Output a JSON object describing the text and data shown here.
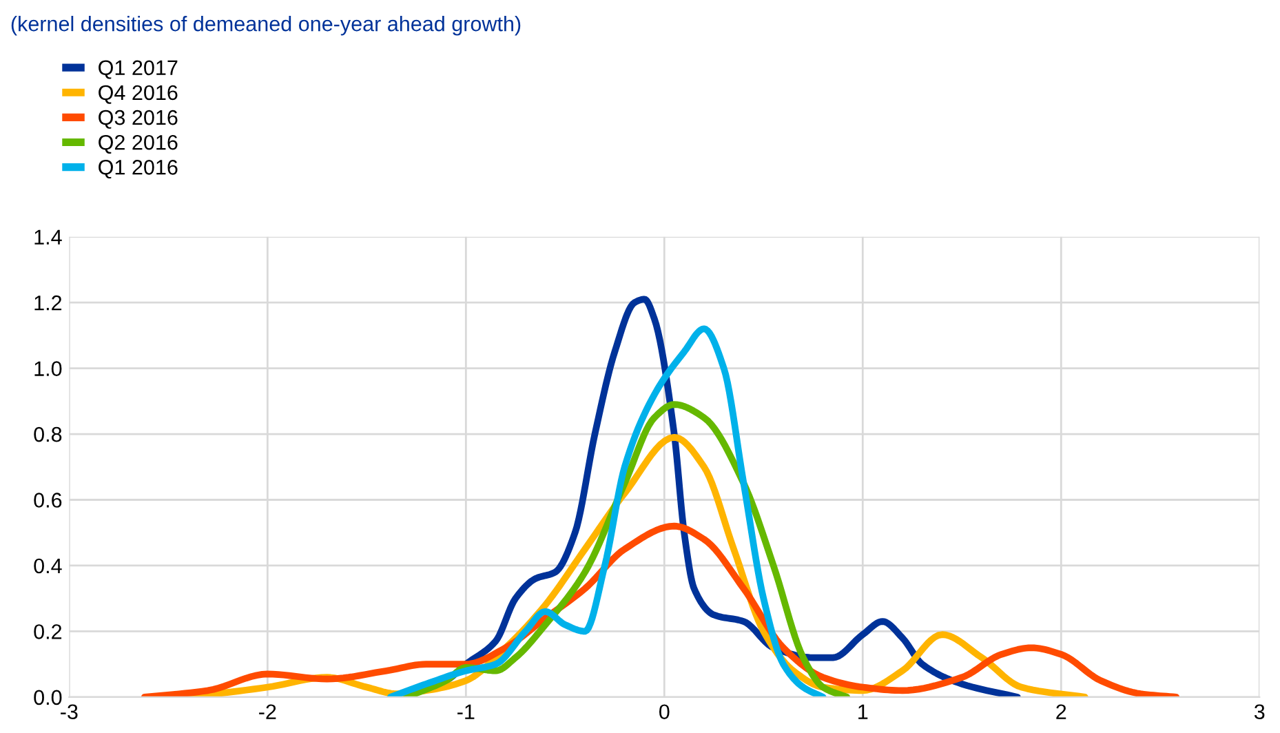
{
  "chart_data": {
    "type": "line",
    "title": "(kernel densities of demeaned one-year ahead growth)",
    "xlim": [
      -3,
      3
    ],
    "xticks": [
      -3,
      -2,
      -1,
      0,
      1,
      2,
      3
    ],
    "ylim": [
      0,
      1.4
    ],
    "yticks": [
      {
        "value": 0,
        "label": "0.0"
      },
      0.2,
      0.4,
      0.6,
      0.8,
      {
        "value": 1,
        "label": "1.0"
      },
      1.2,
      1.4
    ],
    "grid": true,
    "legend": "top left",
    "line_style": "solid",
    "marker": "none",
    "series": [
      {
        "name": "Q1 2017",
        "color": "#003299",
        "x": [
          -1.35,
          -1.1,
          -1.0,
          -0.85,
          -0.75,
          -0.65,
          -0.55,
          -0.45,
          -0.35,
          -0.25,
          -0.15,
          -0.1,
          -0.05,
          0.05,
          0.1,
          0.15,
          0.25,
          0.4,
          0.55,
          0.75,
          0.85,
          1.0,
          1.1,
          1.2,
          1.3,
          1.5,
          1.78
        ],
        "values": [
          0,
          0.05,
          0.1,
          0.17,
          0.3,
          0.36,
          0.38,
          0.5,
          0.8,
          1.05,
          1.2,
          1.21,
          1.15,
          0.8,
          0.5,
          0.33,
          0.25,
          0.23,
          0.15,
          0.12,
          0.12,
          0.19,
          0.23,
          0.18,
          0.1,
          0.04,
          0
        ]
      },
      {
        "name": "Q4 2016",
        "color": "#ffb400",
        "x": [
          -2.4,
          -2.0,
          -1.7,
          -1.5,
          -1.35,
          -1.2,
          -1.0,
          -0.8,
          -0.6,
          -0.4,
          -0.2,
          0.05,
          0.2,
          0.35,
          0.5,
          0.65,
          0.8,
          1.0,
          1.2,
          1.4,
          1.6,
          1.8,
          2.12
        ],
        "values": [
          0,
          0.03,
          0.06,
          0.03,
          0.01,
          0.02,
          0.05,
          0.15,
          0.28,
          0.45,
          0.62,
          0.79,
          0.7,
          0.45,
          0.2,
          0.08,
          0.03,
          0.02,
          0.08,
          0.19,
          0.12,
          0.03,
          0
        ]
      },
      {
        "name": "Q3 2016",
        "color": "#ff4b00",
        "x": [
          -2.62,
          -2.3,
          -2.0,
          -1.7,
          -1.4,
          -1.2,
          -1.0,
          -0.8,
          -0.6,
          -0.4,
          -0.2,
          0.05,
          0.2,
          0.4,
          0.6,
          0.8,
          1.0,
          1.2,
          1.5,
          1.7,
          1.85,
          2.0,
          2.2,
          2.4,
          2.58
        ],
        "values": [
          0,
          0.02,
          0.07,
          0.055,
          0.08,
          0.1,
          0.1,
          0.15,
          0.24,
          0.33,
          0.45,
          0.52,
          0.48,
          0.33,
          0.15,
          0.06,
          0.03,
          0.02,
          0.06,
          0.13,
          0.15,
          0.13,
          0.05,
          0.01,
          0
        ]
      },
      {
        "name": "Q2 2016",
        "color": "#65b800",
        "x": [
          -1.3,
          -1.1,
          -1.0,
          -0.85,
          -0.75,
          -0.6,
          -0.4,
          -0.2,
          -0.05,
          0.05,
          0.2,
          0.4,
          0.55,
          0.7,
          0.8,
          0.92
        ],
        "values": [
          0,
          0.05,
          0.09,
          0.08,
          0.12,
          0.22,
          0.38,
          0.65,
          0.85,
          0.89,
          0.85,
          0.65,
          0.4,
          0.12,
          0.03,
          0
        ]
      },
      {
        "name": "Q1 2016",
        "color": "#00b1ea",
        "x": [
          -1.38,
          -1.2,
          -1.0,
          -0.85,
          -0.7,
          -0.6,
          -0.5,
          -0.4,
          -0.3,
          -0.2,
          -0.05,
          0.1,
          0.2,
          0.3,
          0.4,
          0.5,
          0.6,
          0.7,
          0.8
        ],
        "values": [
          0,
          0.04,
          0.08,
          0.1,
          0.2,
          0.26,
          0.22,
          0.2,
          0.4,
          0.7,
          0.92,
          1.05,
          1.12,
          1.0,
          0.65,
          0.3,
          0.1,
          0.03,
          0
        ]
      }
    ]
  }
}
